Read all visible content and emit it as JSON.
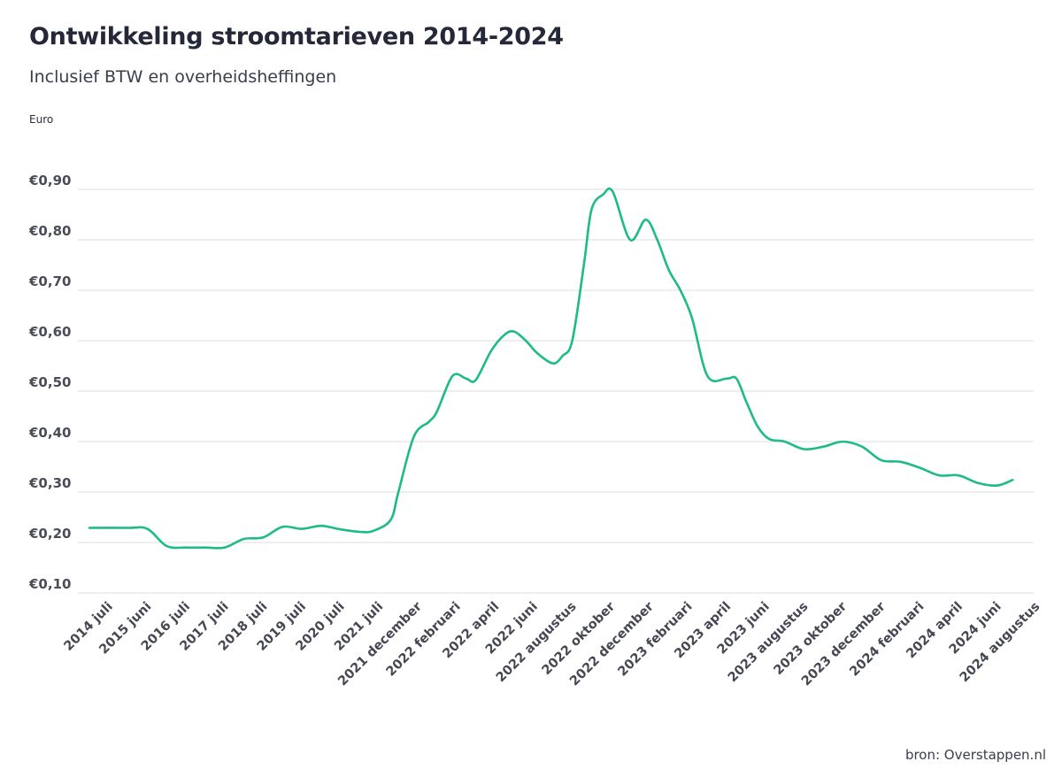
{
  "title": "Ontwikkeling stroomtarieven 2014-2024",
  "subtitle": "Inclusief BTW en overheidsheffingen",
  "unit_label": "Euro",
  "source": "bron: Overstappen.nl",
  "chart_data": {
    "type": "line",
    "title": "Ontwikkeling stroomtarieven 2014-2024",
    "subtitle": "Inclusief BTW en overheidsheffingen",
    "ylabel": "Euro",
    "xlabel": "",
    "ylim": [
      0.1,
      0.9
    ],
    "y_ticks": [
      0.1,
      0.2,
      0.3,
      0.4,
      0.5,
      0.6,
      0.7,
      0.8,
      0.9
    ],
    "y_tick_labels": [
      "€0,10",
      "€0,20",
      "€0,30",
      "€0,40",
      "€0,50",
      "€0,60",
      "€0,70",
      "€0,80",
      "€0,90"
    ],
    "grid": true,
    "line_color": "#1dbb86",
    "x_tick_labels": [
      "2014 juli",
      "2015 juni",
      "2016 juli",
      "2017 juli",
      "2018 juli",
      "2019 juli",
      "2020 juli",
      "2021 juli",
      "2021 december",
      "2022 februari",
      "2022 april",
      "2022 juni",
      "2022 augustus",
      "2022 oktober",
      "2022 december",
      "2023 februari",
      "2023 april",
      "2023 juni",
      "2023 augustus",
      "2023 oktober",
      "2023 december",
      "2024 februari",
      "2024 april",
      "2024 juni",
      "2024 augustus"
    ],
    "series": [
      {
        "x": [
          0,
          1,
          1.5,
          2,
          2.5,
          3,
          3.5,
          4,
          4.5,
          5,
          5.5,
          6,
          6.5,
          7,
          7.35,
          7.8,
          8,
          8.4,
          8.8,
          9,
          9.4,
          9.75,
          10,
          10.4,
          10.75,
          11,
          11.3,
          11.6,
          12,
          12.25,
          12.5,
          12.8,
          13,
          13.3,
          13.55,
          14,
          14.4,
          14.7,
          15,
          15.3,
          15.6,
          16,
          16.5,
          16.75,
          17,
          17.3,
          17.6,
          18,
          18.5,
          19,
          19.5,
          20,
          20.5,
          21,
          21.5,
          22,
          22.5,
          23,
          23.5,
          23.9
        ],
        "values": [
          0.229,
          0.229,
          0.227,
          0.193,
          0.19,
          0.19,
          0.19,
          0.207,
          0.21,
          0.231,
          0.227,
          0.233,
          0.226,
          0.221,
          0.223,
          0.245,
          0.3,
          0.41,
          0.44,
          0.46,
          0.53,
          0.525,
          0.522,
          0.58,
          0.612,
          0.618,
          0.6,
          0.575,
          0.555,
          0.57,
          0.6,
          0.75,
          0.86,
          0.89,
          0.895,
          0.8,
          0.84,
          0.8,
          0.74,
          0.7,
          0.645,
          0.53,
          0.525,
          0.525,
          0.48,
          0.43,
          0.405,
          0.4,
          0.385,
          0.39,
          0.4,
          0.39,
          0.363,
          0.36,
          0.348,
          0.333,
          0.333,
          0.318,
          0.313,
          0.324
        ]
      }
    ]
  }
}
